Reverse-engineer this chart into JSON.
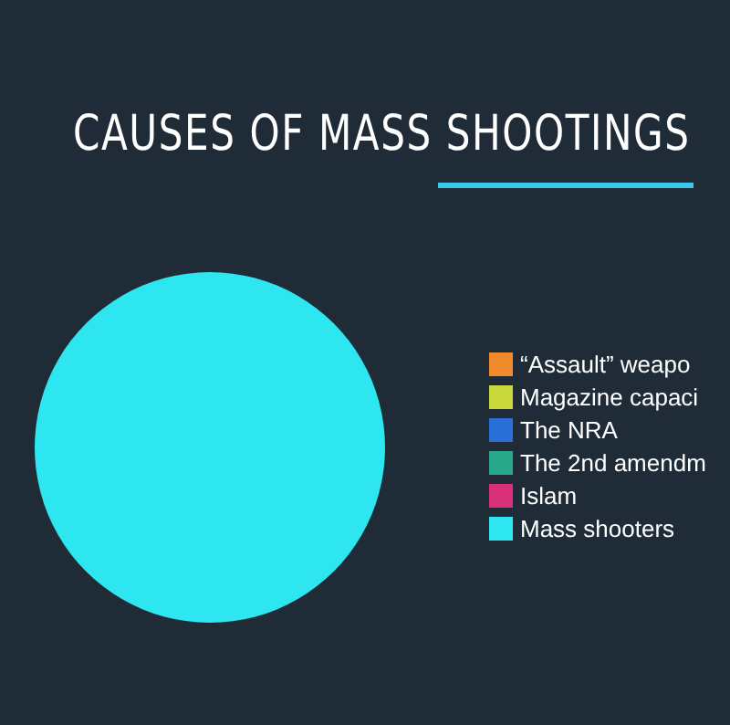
{
  "chart_data": {
    "type": "pie",
    "title": "CAUSES OF MASS SHOOTINGS",
    "categories": [
      "“Assault” weapo",
      "Magazine capaci",
      "The NRA",
      "The 2nd amendm",
      "Islam",
      "Mass shooters"
    ],
    "values": [
      0,
      0,
      0,
      0,
      0,
      100
    ],
    "colors": [
      "#f08a2c",
      "#c8d83a",
      "#2a6fd8",
      "#2aa88a",
      "#d8307a",
      "#2ee6f0"
    ],
    "legend": "right"
  }
}
